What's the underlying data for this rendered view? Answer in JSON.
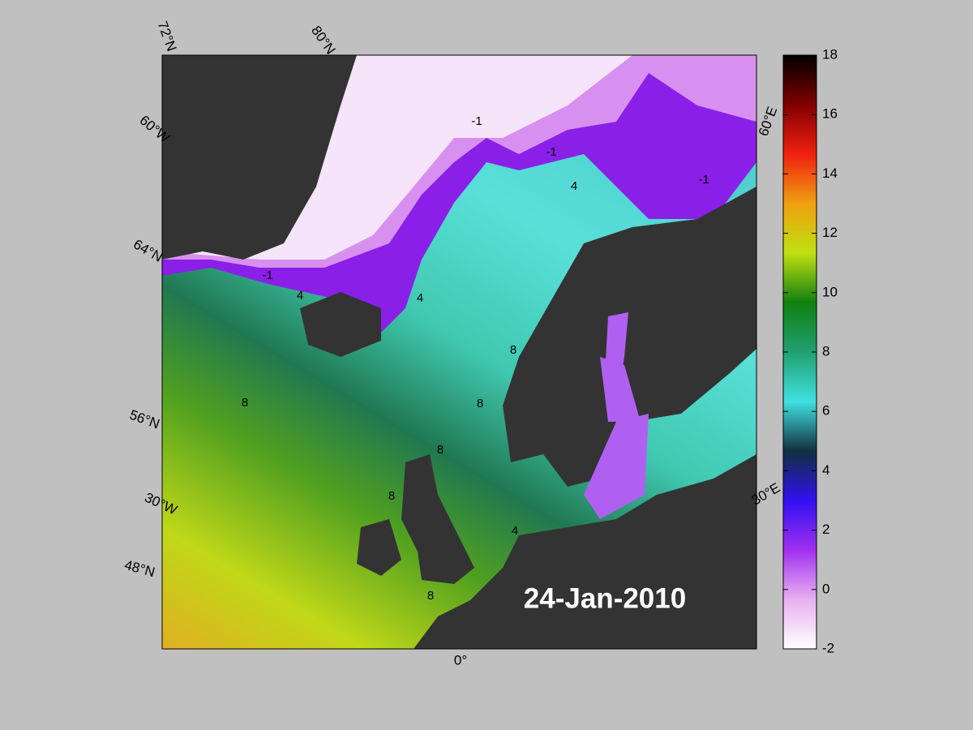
{
  "map": {
    "date": "24-Jan-2010",
    "lat_labels": [
      "72°N",
      "80°N",
      "64°N",
      "56°N",
      "48°N"
    ],
    "lon_labels": [
      "60°W",
      "30°W",
      "0°",
      "30°E",
      "60°E"
    ],
    "contour_labels": [
      "-1",
      "-1",
      "-1",
      "-1",
      "4",
      "4",
      "4",
      "4",
      "8",
      "8",
      "8",
      "8",
      "8",
      "8"
    ]
  },
  "colorbar": {
    "lim": [
      -2,
      18
    ],
    "ticks": [
      -2,
      0,
      2,
      4,
      6,
      8,
      10,
      12,
      14,
      16,
      18
    ],
    "colors": [
      "#ffffff",
      "#e8b0f0",
      "#a030f0",
      "#3010f0",
      "#103040",
      "#40e0e0",
      "#20a070",
      "#108010",
      "#c0e010",
      "#f0a010",
      "#f02010",
      "#800000",
      "#000000"
    ]
  }
}
